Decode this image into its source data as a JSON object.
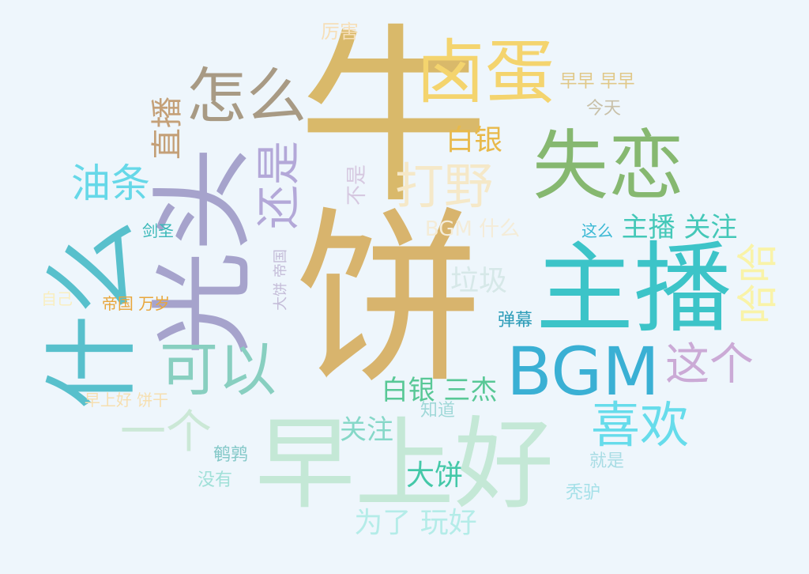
{
  "background": "#eef6fc",
  "words": [
    {
      "text": "牛",
      "color": "#d9b96a"
    },
    {
      "text": "饼",
      "color": "#d8b46d"
    },
    {
      "text": "光头",
      "color": "#a6a3cc"
    },
    {
      "text": "什么",
      "color": "#58c0cc"
    },
    {
      "text": "早上好",
      "color": "#c4e8d6"
    },
    {
      "text": "主播",
      "color": "#3cc4c8"
    },
    {
      "text": "失恋",
      "color": "#86b870"
    },
    {
      "text": "卤蛋",
      "color": "#f4d46e"
    },
    {
      "text": "BGM",
      "color": "#3ab0d4"
    },
    {
      "text": "怎么",
      "color": "#a89a84"
    },
    {
      "text": "可以",
      "color": "#88cfc0"
    },
    {
      "text": "喜欢",
      "color": "#66dceb"
    },
    {
      "text": "还是",
      "color": "#b3a8d8"
    },
    {
      "text": "打野",
      "color": "#f5e8c8"
    },
    {
      "text": "油条",
      "color": "#66d8e8"
    },
    {
      "text": "哈哈",
      "color": "#f9f3a8"
    },
    {
      "text": "这个",
      "color": "#cbaad6"
    },
    {
      "text": "一个",
      "color": "#cbe8d6"
    },
    {
      "text": "直播",
      "color": "#c4a078"
    },
    {
      "text": "白银",
      "color": "#e8b94a"
    },
    {
      "text": "主播 关注",
      "color": "#44c8b8"
    },
    {
      "text": "白银 三杰",
      "color": "#58c896"
    },
    {
      "text": "垃圾",
      "color": "#d6e8e8"
    },
    {
      "text": "大饼",
      "color": "#44c8a8"
    },
    {
      "text": "为了 玩好",
      "color": "#b4ece8"
    },
    {
      "text": "关注",
      "color": "#86d8c8"
    },
    {
      "text": "不是",
      "color": "#d6c8e0"
    },
    {
      "text": "BGM 什么",
      "color": "#f4ecd8"
    },
    {
      "text": "早早 早早",
      "color": "#e0c888"
    },
    {
      "text": "厉害",
      "color": "#f6dfb8"
    },
    {
      "text": "今天",
      "color": "#c8c0a8"
    },
    {
      "text": "这么",
      "color": "#3ab8d4"
    },
    {
      "text": "剑圣",
      "color": "#3ab8b8"
    },
    {
      "text": "自己",
      "color": "#f9eec0"
    },
    {
      "text": "帝国 万岁",
      "color": "#e8a63c"
    },
    {
      "text": "大饼 帝国",
      "color": "#c4bcd8"
    },
    {
      "text": "弹幕",
      "color": "#2c9cb8"
    },
    {
      "text": "早上好 饼干",
      "color": "#f6dfb0"
    },
    {
      "text": "知道",
      "color": "#a0d8d8"
    },
    {
      "text": "鹌鹑",
      "color": "#84c8c8"
    },
    {
      "text": "没有",
      "color": "#a0e0d8"
    },
    {
      "text": "就是",
      "color": "#a8dce4"
    },
    {
      "text": "秃驴",
      "color": "#a4e0e8"
    }
  ]
}
